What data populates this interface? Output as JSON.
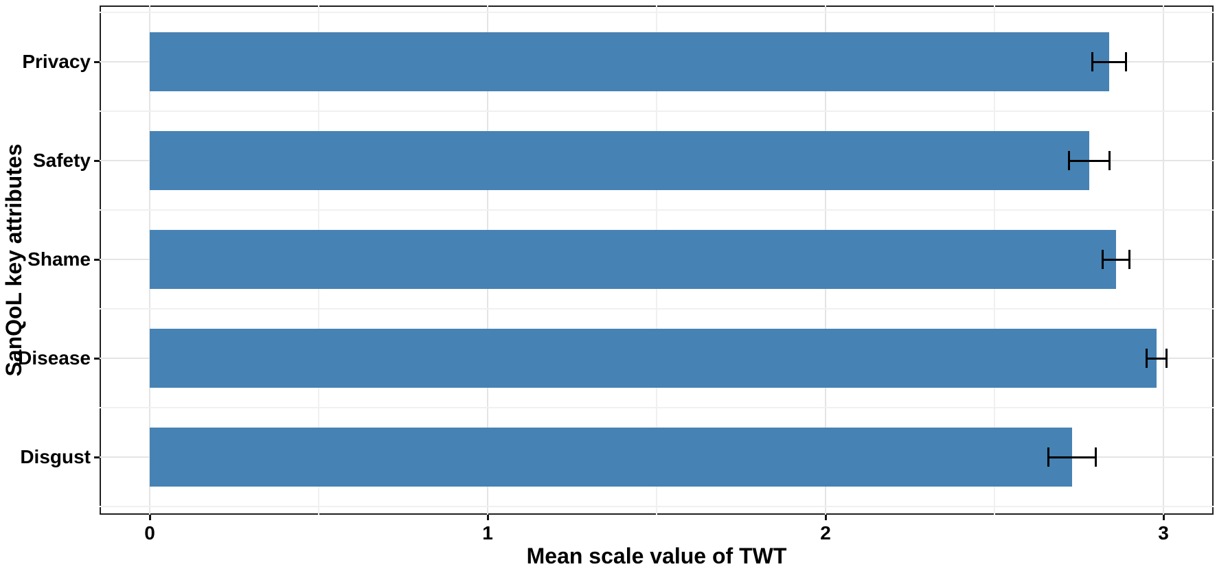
{
  "chart_data": {
    "type": "bar",
    "orientation": "horizontal",
    "title": "",
    "xlabel": "Mean scale value of TWT",
    "ylabel": "SanQoL key attributes",
    "categories": [
      "Privacy",
      "Safety",
      "Shame",
      "Disease",
      "Disgust"
    ],
    "series": [
      {
        "name": "Mean scale value of TWT",
        "values": [
          2.84,
          2.78,
          2.86,
          2.98,
          2.73
        ],
        "error_bars": [
          0.05,
          0.06,
          0.04,
          0.03,
          0.07
        ]
      }
    ],
    "xlim": [
      0,
      3
    ],
    "xticks": [
      0,
      1,
      2,
      3
    ],
    "xtick_labels": [
      "0",
      "1",
      "2",
      "3"
    ],
    "minor_gridticks": [
      0.5,
      1.5,
      2.5
    ],
    "grid": true,
    "legend": false,
    "colors": {
      "bar": "#4682b4",
      "grid_major": "#e4e4e4",
      "grid_minor": "#f0f0f0",
      "panel_border": "#1f1f1f",
      "error_bar": "#000000",
      "text": "#000000",
      "background": "#ffffff"
    }
  }
}
